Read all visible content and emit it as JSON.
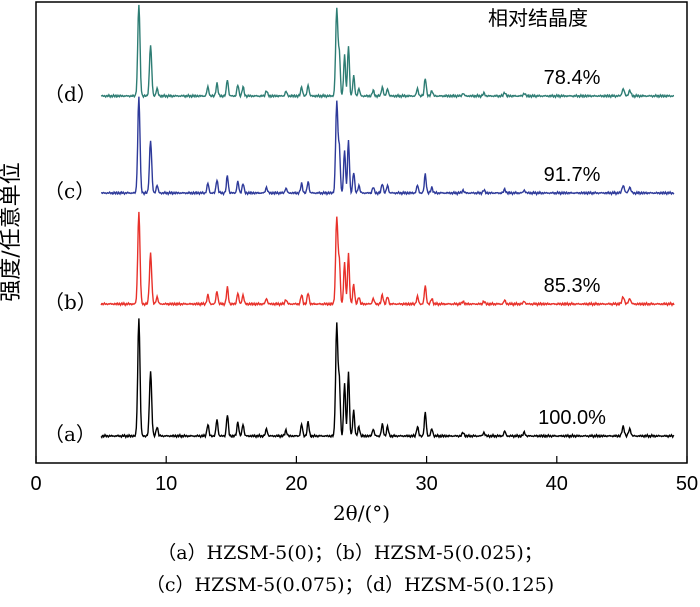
{
  "chart_data": {
    "type": "line",
    "title": "",
    "xlabel": "2θ/(°)",
    "ylabel": "强度/任意单位",
    "xlim": [
      0,
      50
    ],
    "xticks": [
      0,
      10,
      20,
      30,
      40,
      50
    ],
    "grid": false,
    "legend": "none",
    "annotation_header": "相对结晶度",
    "peaks": [
      [
        7.9,
        1.0,
        0.12
      ],
      [
        8.8,
        0.55,
        0.12
      ],
      [
        9.3,
        0.08,
        0.1
      ],
      [
        13.2,
        0.1,
        0.1
      ],
      [
        13.9,
        0.14,
        0.1
      ],
      [
        14.7,
        0.18,
        0.1
      ],
      [
        15.5,
        0.12,
        0.1
      ],
      [
        15.9,
        0.1,
        0.1
      ],
      [
        17.7,
        0.06,
        0.1
      ],
      [
        19.2,
        0.05,
        0.1
      ],
      [
        20.4,
        0.1,
        0.1
      ],
      [
        20.9,
        0.12,
        0.1
      ],
      [
        23.1,
        0.95,
        0.12
      ],
      [
        23.3,
        0.45,
        0.1
      ],
      [
        23.7,
        0.45,
        0.1
      ],
      [
        24.0,
        0.55,
        0.1
      ],
      [
        24.4,
        0.22,
        0.1
      ],
      [
        24.8,
        0.08,
        0.1
      ],
      [
        25.9,
        0.06,
        0.1
      ],
      [
        26.6,
        0.1,
        0.1
      ],
      [
        27.0,
        0.08,
        0.1
      ],
      [
        29.3,
        0.08,
        0.1
      ],
      [
        29.9,
        0.2,
        0.1
      ],
      [
        30.4,
        0.06,
        0.1
      ],
      [
        32.8,
        0.03,
        0.1
      ],
      [
        34.4,
        0.03,
        0.1
      ],
      [
        36.0,
        0.04,
        0.1
      ],
      [
        37.5,
        0.03,
        0.1
      ],
      [
        45.1,
        0.08,
        0.12
      ],
      [
        45.6,
        0.06,
        0.12
      ]
    ],
    "series": [
      {
        "label": "（a）",
        "crystallinity": "100.0%",
        "color": "#000000",
        "scale": 1.0,
        "offset": 0
      },
      {
        "label": "（b）",
        "crystallinity": "85.3%",
        "color": "#e8312a",
        "scale": 0.85,
        "offset": 1
      },
      {
        "label": "（c）",
        "crystallinity": "91.7%",
        "color": "#2e3a9a",
        "scale": 0.92,
        "offset": 2
      },
      {
        "label": "（d）",
        "crystallinity": "78.4%",
        "color": "#2e7d74",
        "scale": 0.8,
        "offset": 3
      }
    ]
  },
  "captions": {
    "line1": "（a）HZSM-5(0)；（b）HZSM-5(0.025)；",
    "line2": "（c）HZSM-5(0.075)；（d）HZSM-5(0.125)"
  }
}
